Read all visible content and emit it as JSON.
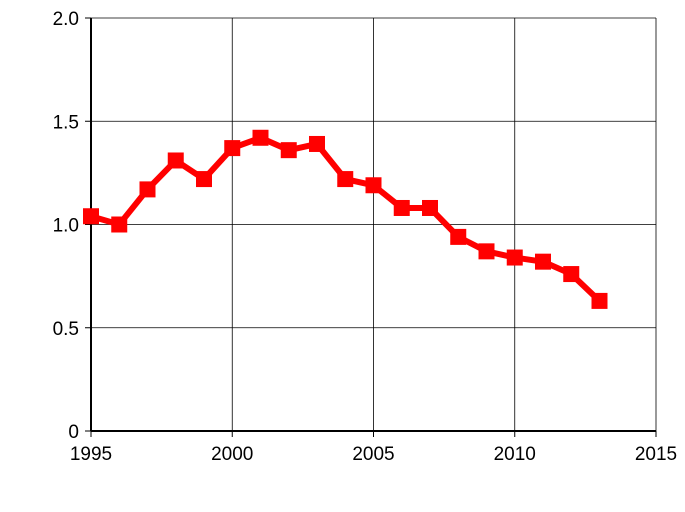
{
  "chart_data": {
    "type": "line",
    "title": "",
    "xlabel": "",
    "ylabel": "",
    "xlim": [
      1995,
      2015
    ],
    "ylim": [
      0,
      2.0
    ],
    "grid": true,
    "x_ticks": [
      1995,
      2000,
      2005,
      2010,
      2015
    ],
    "x_tick_labels": [
      "1995",
      "2000",
      "2005",
      "2010",
      "2015"
    ],
    "y_ticks": [
      0,
      0.5,
      1.0,
      1.5,
      2.0
    ],
    "y_tick_labels": [
      "0",
      "0.5",
      "1.0",
      "1.5",
      "2.0"
    ],
    "series": [
      {
        "color": "#ff0000",
        "marker": "square",
        "x": [
          1995,
          1996,
          1997,
          1998,
          1999,
          2000,
          2001,
          2002,
          2003,
          2004,
          2005,
          2006,
          2007,
          2008,
          2009,
          2010,
          2011,
          2012,
          2013
        ],
        "values": [
          1.04,
          1.0,
          1.17,
          1.31,
          1.22,
          1.37,
          1.42,
          1.36,
          1.39,
          1.22,
          1.19,
          1.08,
          1.08,
          0.94,
          0.87,
          0.84,
          0.82,
          0.76,
          0.63
        ]
      }
    ]
  }
}
